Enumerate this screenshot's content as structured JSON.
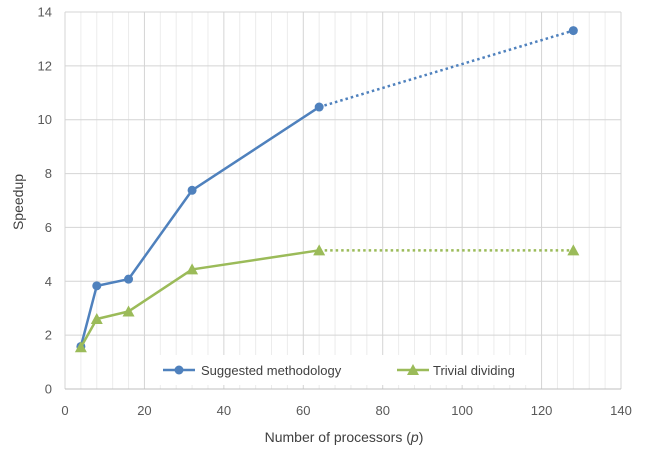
{
  "chart_data": {
    "type": "line",
    "xlabel": "Number of processors (",
    "xlabel_var": "p",
    "xlabel_close": ")",
    "ylabel": "Speedup",
    "xlim": [
      0,
      140
    ],
    "ylim": [
      0,
      14
    ],
    "x_ticks": [
      0,
      20,
      40,
      60,
      80,
      100,
      120,
      140
    ],
    "y_ticks": [
      0,
      2,
      4,
      6,
      8,
      10,
      12,
      14
    ],
    "grid": "major and minor vertical, major horizontal",
    "legend_position": "bottom-center",
    "series": [
      {
        "name": "Suggested methodology",
        "color": "#4f81bd",
        "marker": "circle",
        "x": [
          4,
          8,
          16,
          32,
          64,
          128
        ],
        "y": [
          1.58,
          3.83,
          4.08,
          7.38,
          10.47,
          13.31
        ],
        "dotted_from_index": 4
      },
      {
        "name": "Trivial dividing",
        "color": "#9bbb59",
        "marker": "triangle",
        "x": [
          4,
          8,
          16,
          32,
          64,
          128
        ],
        "y": [
          1.55,
          2.6,
          2.88,
          4.44,
          5.15,
          5.15
        ],
        "dotted_from_index": 4
      }
    ]
  }
}
